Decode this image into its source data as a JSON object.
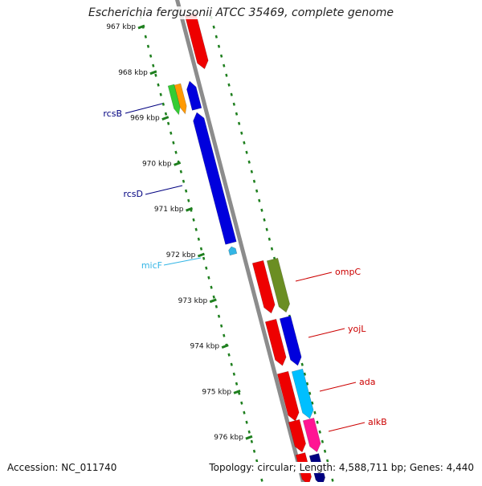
{
  "title": "Escherichia fergusonii ATCC 35469, complete genome",
  "footer": {
    "accession": "Accession: NC_011740",
    "summary": "Topology: circular; Length: 4,588,711 bp; Genes: 4,440"
  },
  "ticks": [
    {
      "label": "967 kbp",
      "kbp": 967
    },
    {
      "label": "968 kbp",
      "kbp": 968
    },
    {
      "label": "969 kbp",
      "kbp": 969
    },
    {
      "label": "970 kbp",
      "kbp": 970
    },
    {
      "label": "971 kbp",
      "kbp": 971
    },
    {
      "label": "972 kbp",
      "kbp": 972
    },
    {
      "label": "973 kbp",
      "kbp": 973
    },
    {
      "label": "974 kbp",
      "kbp": 974
    },
    {
      "label": "975 kbp",
      "kbp": 975
    },
    {
      "label": "976 kbp",
      "kbp": 976
    }
  ],
  "colors": {
    "backbone": "#8c8c8c",
    "tick": "#1e7f1e",
    "red": "#ee0000",
    "blue": "#0000dd",
    "olive": "#6b8e23",
    "cyan": "#00bfff",
    "magenta": "#ff1493",
    "green": "#33cc33",
    "orange": "#ff9900",
    "navy": "#000080",
    "micf": "#33b5e5"
  },
  "labels": [
    {
      "text": "rcsB",
      "color": "#000080"
    },
    {
      "text": "rcsD",
      "color": "#000080"
    },
    {
      "text": "micF",
      "color": "#33b5e5"
    },
    {
      "text": "ompC",
      "color": "#cc0000"
    },
    {
      "text": "yojL",
      "color": "#cc0000"
    },
    {
      "text": "ada",
      "color": "#cc0000"
    },
    {
      "text": "alkB",
      "color": "#cc0000"
    }
  ]
}
